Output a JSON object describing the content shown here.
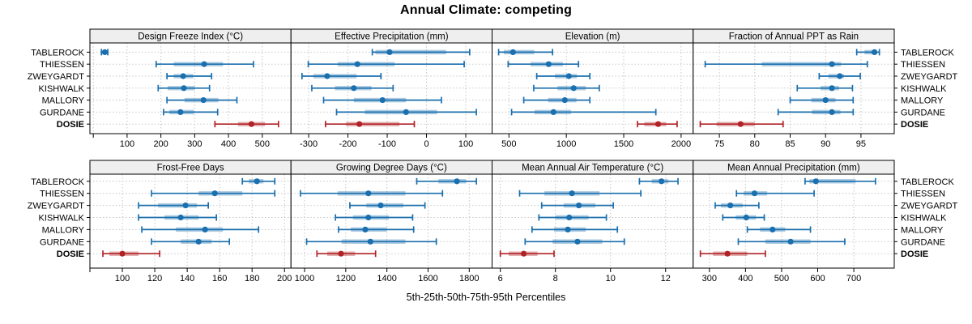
{
  "chart_data": {
    "type": "percentile_dotplot",
    "title": "Annual Climate: competing",
    "caption": "5th-25th-50th-75th-95th Percentiles",
    "percentile_labels": [
      "5th",
      "25th",
      "50th",
      "75th",
      "95th"
    ],
    "categories": [
      "TABLEROCK",
      "THIESSEN",
      "ZWEYGARDT",
      "KISHWALK",
      "MALLORY",
      "GURDANE",
      "DOSIE"
    ],
    "highlight_site": "DOSIE",
    "colors": {
      "series_blue": "#1a6fae",
      "highlight_red": "#b12226",
      "strip_bg": "#efefef",
      "panel_border": "#000000",
      "grid": "#c6c6c6",
      "text": "#000000"
    },
    "layout_hints": {
      "rows": 2,
      "cols": 4,
      "grid": "dotted",
      "legend": "none",
      "labels_left": true,
      "labels_right": true,
      "highlight_label_bold": true
    },
    "panels": [
      {
        "title": "Design Freeze Index (°C)",
        "row": 0,
        "col": 0,
        "axis": {
          "min": -10,
          "max": 585,
          "ticks": [
            {
              "v": 0,
              "label": ""
            },
            {
              "v": 100,
              "label": "100"
            },
            {
              "v": 200,
              "label": "200"
            },
            {
              "v": 300,
              "label": "300"
            },
            {
              "v": 400,
              "label": "400"
            },
            {
              "v": 500,
              "label": "500"
            }
          ]
        },
        "values": {
          "TABLEROCK": [
            24,
            29,
            34,
            38,
            43
          ],
          "THIESSEN": [
            186,
            238,
            328,
            384,
            474
          ],
          "ZWEYGARDT": [
            218,
            238,
            266,
            296,
            350
          ],
          "KISHWALK": [
            192,
            220,
            268,
            300,
            344
          ],
          "MALLORY": [
            218,
            270,
            326,
            370,
            425
          ],
          "GURDANE": [
            208,
            225,
            258,
            298,
            368
          ],
          "DOSIE": [
            360,
            428,
            468,
            508,
            548
          ]
        }
      },
      {
        "title": "Effective Precipitation (mm)",
        "row": 0,
        "col": 1,
        "axis": {
          "min": -345,
          "max": 167,
          "ticks": [
            {
              "v": -300,
              "label": "-300"
            },
            {
              "v": -200,
              "label": "-200"
            },
            {
              "v": -100,
              "label": "-100"
            },
            {
              "v": 0,
              "label": "0"
            },
            {
              "v": 100,
              "label": "100"
            }
          ]
        },
        "values": {
          "TABLEROCK": [
            -138,
            -130,
            -94,
            50,
            110
          ],
          "THIESSEN": [
            -301,
            -226,
            -176,
            -81,
            96
          ],
          "ZWEYGARDT": [
            -317,
            -288,
            -253,
            -178,
            -116
          ],
          "KISHWALK": [
            -292,
            -233,
            -185,
            -140,
            -85
          ],
          "MALLORY": [
            -262,
            -185,
            -112,
            -52,
            38
          ],
          "GURDANE": [
            -229,
            -157,
            -52,
            27,
            127
          ],
          "DOSIE": [
            -257,
            -205,
            -171,
            -69,
            -31
          ]
        }
      },
      {
        "title": "Elevation (m)",
        "row": 0,
        "col": 2,
        "axis": {
          "min": 353,
          "max": 2105,
          "ticks": [
            {
              "v": 500,
              "label": "500"
            },
            {
              "v": 1000,
              "label": "1000"
            },
            {
              "v": 1500,
              "label": "1500"
            },
            {
              "v": 2000,
              "label": "2000"
            }
          ]
        },
        "values": {
          "TABLEROCK": [
            410,
            455,
            535,
            720,
            880
          ],
          "THIESSEN": [
            493,
            688,
            846,
            970,
            1106
          ],
          "ZWEYGARDT": [
            742,
            900,
            1022,
            1092,
            1205
          ],
          "KISHWALK": [
            716,
            923,
            1064,
            1170,
            1287
          ],
          "MALLORY": [
            629,
            841,
            987,
            1088,
            1205
          ],
          "GURDANE": [
            523,
            723,
            888,
            1041,
            1780
          ],
          "DOSIE": [
            1620,
            1680,
            1800,
            1870,
            1965
          ]
        }
      },
      {
        "title": "Fraction of Annual PPT as Rain",
        "row": 0,
        "col": 3,
        "axis": {
          "min": 71.3,
          "max": 99.7,
          "ticks": [
            {
              "v": 75,
              "label": "75"
            },
            {
              "v": 80,
              "label": "80"
            },
            {
              "v": 85,
              "label": "85"
            },
            {
              "v": 90,
              "label": "90"
            },
            {
              "v": 95,
              "label": "95"
            }
          ]
        },
        "values": {
          "TABLEROCK": [
            94.4,
            95.5,
            96.9,
            97.3,
            97.6
          ],
          "THIESSEN": [
            73,
            81,
            90.9,
            92.2,
            95.9
          ],
          "ZWEYGARDT": [
            89.1,
            90.4,
            92,
            92.6,
            94.9
          ],
          "KISHWALK": [
            86,
            89.3,
            90.9,
            91.9,
            93.8
          ],
          "MALLORY": [
            85,
            88,
            90,
            91.4,
            93.9
          ],
          "GURDANE": [
            83.3,
            88.1,
            90.9,
            92.1,
            93.9
          ],
          "DOSIE": [
            72.3,
            74.6,
            78,
            80,
            84
          ]
        }
      },
      {
        "title": "Frost-Free Days",
        "row": 1,
        "col": 0,
        "axis": {
          "min": 80,
          "max": 204,
          "ticks": [
            {
              "v": 80,
              "label": ""
            },
            {
              "v": 100,
              "label": "100"
            },
            {
              "v": 120,
              "label": "120"
            },
            {
              "v": 140,
              "label": "140"
            },
            {
              "v": 160,
              "label": "160"
            },
            {
              "v": 180,
              "label": "180"
            },
            {
              "v": 200,
              "label": "200"
            }
          ]
        },
        "values": {
          "TABLEROCK": [
            174,
            178,
            183,
            187,
            194
          ],
          "THIESSEN": [
            118,
            147,
            157,
            174,
            194
          ],
          "ZWEYGARDT": [
            110,
            122,
            139,
            146,
            153
          ],
          "KISHWALK": [
            110,
            126,
            136,
            147,
            158
          ],
          "MALLORY": [
            112,
            133,
            151,
            162,
            184
          ],
          "GURDANE": [
            118,
            136,
            147,
            155,
            166
          ],
          "DOSIE": [
            88,
            92,
            100,
            110,
            123
          ]
        }
      },
      {
        "title": "Growing Degree Days (°C)",
        "row": 1,
        "col": 1,
        "axis": {
          "min": 934,
          "max": 1911,
          "ticks": [
            {
              "v": 1000,
              "label": "1000"
            },
            {
              "v": 1200,
              "label": "1200"
            },
            {
              "v": 1400,
              "label": "1400"
            },
            {
              "v": 1600,
              "label": "1600"
            },
            {
              "v": 1800,
              "label": "1800"
            }
          ]
        },
        "values": {
          "TABLEROCK": [
            1545,
            1650,
            1740,
            1785,
            1835
          ],
          "THIESSEN": [
            980,
            1160,
            1310,
            1490,
            1670
          ],
          "ZWEYGARDT": [
            1220,
            1300,
            1370,
            1480,
            1585
          ],
          "KISHWALK": [
            1150,
            1235,
            1310,
            1410,
            1525
          ],
          "MALLORY": [
            1165,
            1225,
            1295,
            1400,
            1530
          ],
          "GURDANE": [
            1010,
            1180,
            1320,
            1490,
            1640
          ],
          "DOSIE": [
            1060,
            1110,
            1177,
            1245,
            1345
          ]
        }
      },
      {
        "title": "Mean Annual Air Temperature (°C)",
        "row": 1,
        "col": 2,
        "axis": {
          "min": 5.7,
          "max": 13.0,
          "ticks": [
            {
              "v": 6,
              "label": "6"
            },
            {
              "v": 8,
              "label": "8"
            },
            {
              "v": 10,
              "label": "10"
            },
            {
              "v": 12,
              "label": "12"
            }
          ]
        },
        "values": {
          "TABLEROCK": [
            11.05,
            11.5,
            11.85,
            12.1,
            12.45
          ],
          "THIESSEN": [
            6.7,
            7.6,
            8.6,
            9.6,
            11.1
          ],
          "ZWEYGARDT": [
            7.5,
            8.3,
            8.85,
            9.45,
            10.1
          ],
          "KISHWALK": [
            7.4,
            8.0,
            8.5,
            9.2,
            9.85
          ],
          "MALLORY": [
            7.15,
            7.95,
            8.45,
            9.1,
            10.25
          ],
          "GURDANE": [
            6.9,
            7.9,
            8.8,
            9.7,
            10.5
          ],
          "DOSIE": [
            6.0,
            6.3,
            6.85,
            7.35,
            7.95
          ]
        }
      },
      {
        "title": "Mean Annual Precipitation (mm)",
        "row": 1,
        "col": 3,
        "axis": {
          "min": 255,
          "max": 812,
          "ticks": [
            {
              "v": 300,
              "label": "300"
            },
            {
              "v": 400,
              "label": "400"
            },
            {
              "v": 500,
              "label": "500"
            },
            {
              "v": 600,
              "label": "600"
            },
            {
              "v": 700,
              "label": "700"
            }
          ]
        },
        "values": {
          "TABLEROCK": [
            565,
            577,
            595,
            705,
            760
          ],
          "THIESSEN": [
            375,
            395,
            425,
            460,
            590
          ],
          "ZWEYGARDT": [
            316,
            332,
            358,
            392,
            437
          ],
          "KISHWALK": [
            337,
            373,
            402,
            429,
            452
          ],
          "MALLORY": [
            405,
            440,
            475,
            510,
            580
          ],
          "GURDANE": [
            380,
            455,
            525,
            580,
            675
          ],
          "DOSIE": [
            275,
            310,
            350,
            405,
            455
          ]
        }
      }
    ]
  }
}
